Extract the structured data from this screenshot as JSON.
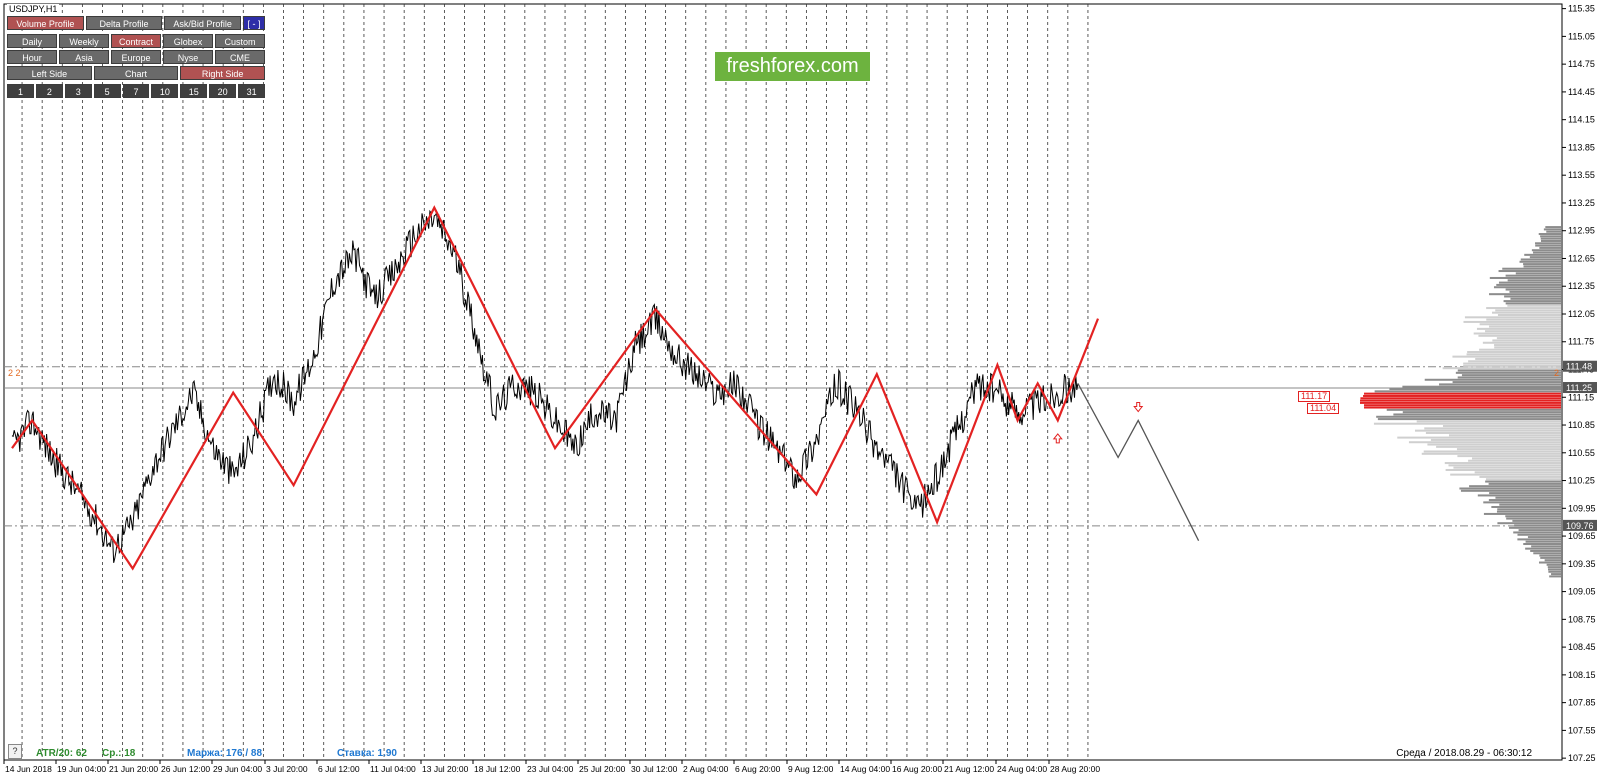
{
  "symbol": "USDJPY,H1",
  "brand": "freshforex.com",
  "colors": {
    "price": "#000000",
    "zigzag": "#e32222",
    "projection": "#555555",
    "grid": "#333333",
    "profile": "#8c8c8c",
    "profile_light": "#cfcfcf",
    "poc": "#e32222",
    "level_line": "#888888",
    "axis": "#000000"
  },
  "panel": {
    "top_buttons": [
      {
        "label": "Volume Profile",
        "active": true
      },
      {
        "label": "Delta Profile",
        "active": false
      },
      {
        "label": "Ask/Bid Profile",
        "active": false
      }
    ],
    "collapse_label": "[ - ]",
    "period_buttons": [
      {
        "label": "Daily",
        "active": false
      },
      {
        "label": "Weekly",
        "active": false
      },
      {
        "label": "Contract",
        "active": true
      },
      {
        "label": "Globex",
        "active": false
      },
      {
        "label": "Custom",
        "active": false
      }
    ],
    "session_buttons": [
      {
        "label": "Hour",
        "active": false
      },
      {
        "label": "Asia",
        "active": false
      },
      {
        "label": "Europe",
        "active": false
      },
      {
        "label": "Nyse",
        "active": false
      },
      {
        "label": "CME",
        "active": false
      }
    ],
    "side_buttons": [
      {
        "label": "Left Side",
        "active": false
      },
      {
        "label": "Chart",
        "active": false
      },
      {
        "label": "Right Side",
        "active": true
      }
    ],
    "number_buttons": [
      {
        "label": "1",
        "active": true
      },
      {
        "label": "2",
        "active": false
      },
      {
        "label": "3",
        "active": false
      },
      {
        "label": "5",
        "active": false
      },
      {
        "label": "7",
        "active": false
      },
      {
        "label": "10",
        "active": false
      },
      {
        "label": "15",
        "active": false
      },
      {
        "label": "20",
        "active": false
      },
      {
        "label": "31",
        "active": false
      }
    ]
  },
  "status": {
    "help": "?",
    "atr": "ATR/20: 62",
    "avg": "Ср.: 18",
    "margin": "Маржа: 176 / 88",
    "rate": "Ставка: 1.90",
    "datetime": "Среда  /  2018.08.29  -  06:30:12"
  },
  "zigzag_labels": {
    "left": "2 2",
    "right": "2"
  },
  "volume_labels": {
    "upper": "111.17",
    "lower": "111.04"
  },
  "chart_data": {
    "type": "line",
    "ylim": [
      107.23,
      115.4
    ],
    "y_ticks": [
      "115.35",
      "115.05",
      "114.75",
      "114.45",
      "114.15",
      "113.85",
      "113.55",
      "113.25",
      "112.95",
      "112.65",
      "112.35",
      "112.05",
      "111.75",
      "111.45",
      "111.15",
      "110.85",
      "110.55",
      "110.25",
      "109.95",
      "109.65",
      "109.35",
      "109.05",
      "108.75",
      "108.45",
      "108.15",
      "107.85",
      "107.55",
      "107.25"
    ],
    "y_highlight": [
      {
        "label": "111.48",
        "value": 111.48,
        "style": "dark"
      },
      {
        "label": "111.25",
        "value": 111.25,
        "style": "dark"
      },
      {
        "label": "109.76",
        "value": 109.76,
        "style": "dark"
      }
    ],
    "x_ticks": [
      "14 Jun 2018",
      "19 Jun 04:00",
      "21 Jun 20:00",
      "26 Jun 12:00",
      "29 Jun 04:00",
      "3 Jul 20:00",
      "6 Jul 12:00",
      "11 Jul 04:00",
      "13 Jul 20:00",
      "18 Jul 12:00",
      "23 Jul 04:00",
      "25 Jul 20:00",
      "30 Jul 12:00",
      "2 Aug 04:00",
      "6 Aug 20:00",
      "9 Aug 12:00",
      "14 Aug 04:00",
      "16 Aug 20:00",
      "21 Aug 12:00",
      "24 Aug 04:00",
      "28 Aug 20:00"
    ],
    "bar_count": 54,
    "horizontal_levels": [
      111.48,
      111.25,
      109.76
    ],
    "price_path": [
      110.6,
      110.9,
      110.5,
      110.2,
      109.9,
      109.5,
      109.8,
      110.4,
      110.8,
      111.2,
      110.6,
      110.3,
      110.7,
      111.4,
      111.1,
      111.6,
      112.4,
      112.7,
      112.2,
      112.5,
      112.9,
      113.1,
      112.7,
      111.9,
      111.0,
      111.3,
      111.2,
      110.9,
      110.6,
      111.0,
      110.9,
      111.7,
      112.0,
      111.6,
      111.4,
      111.2,
      111.3,
      110.9,
      110.6,
      110.3,
      110.7,
      111.3,
      111.0,
      110.6,
      110.3,
      109.9,
      110.3,
      110.8,
      111.3,
      111.2,
      111.0,
      111.1,
      111.2,
      111.3
    ],
    "zigzag": [
      {
        "i": 0,
        "v": 110.6
      },
      {
        "i": 1,
        "v": 110.9
      },
      {
        "i": 6,
        "v": 109.3
      },
      {
        "i": 11,
        "v": 111.2
      },
      {
        "i": 14,
        "v": 110.2
      },
      {
        "i": 21,
        "v": 113.2
      },
      {
        "i": 27,
        "v": 110.6
      },
      {
        "i": 32,
        "v": 112.1
      },
      {
        "i": 40,
        "v": 110.1
      },
      {
        "i": 43,
        "v": 111.4
      },
      {
        "i": 46,
        "v": 109.8
      },
      {
        "i": 49,
        "v": 111.5
      },
      {
        "i": 50,
        "v": 110.9
      },
      {
        "i": 51,
        "v": 111.3
      },
      {
        "i": 52,
        "v": 110.9
      },
      {
        "i": 54,
        "v": 112.0
      }
    ],
    "projection": [
      {
        "i": 53,
        "v": 111.3
      },
      {
        "i": 55,
        "v": 110.5
      },
      {
        "i": 56,
        "v": 110.9
      },
      {
        "i": 59,
        "v": 109.6
      }
    ],
    "markers": [
      {
        "i": 52,
        "v": 110.7,
        "dir": "up"
      },
      {
        "i": 56,
        "v": 111.05,
        "dir": "down"
      }
    ],
    "volume_profile": {
      "price_from": 109.1,
      "price_to": 113.1,
      "poc": 111.12,
      "levels": [
        {
          "price": 113.0,
          "volume": 0.08
        },
        {
          "price": 112.8,
          "volume": 0.12
        },
        {
          "price": 112.6,
          "volume": 0.22
        },
        {
          "price": 112.4,
          "volume": 0.32
        },
        {
          "price": 112.2,
          "volume": 0.28
        },
        {
          "price": 112.0,
          "volume": 0.42
        },
        {
          "price": 111.8,
          "volume": 0.38
        },
        {
          "price": 111.6,
          "volume": 0.45
        },
        {
          "price": 111.4,
          "volume": 0.55
        },
        {
          "price": 111.2,
          "volume": 0.8
        },
        {
          "price": 111.1,
          "volume": 1.0
        },
        {
          "price": 111.0,
          "volume": 0.9
        },
        {
          "price": 110.8,
          "volume": 0.7
        },
        {
          "price": 110.6,
          "volume": 0.62
        },
        {
          "price": 110.4,
          "volume": 0.5
        },
        {
          "price": 110.2,
          "volume": 0.45
        },
        {
          "price": 110.0,
          "volume": 0.38
        },
        {
          "price": 109.8,
          "volume": 0.3
        },
        {
          "price": 109.6,
          "volume": 0.18
        },
        {
          "price": 109.4,
          "volume": 0.1
        },
        {
          "price": 109.2,
          "volume": 0.05
        }
      ]
    }
  }
}
